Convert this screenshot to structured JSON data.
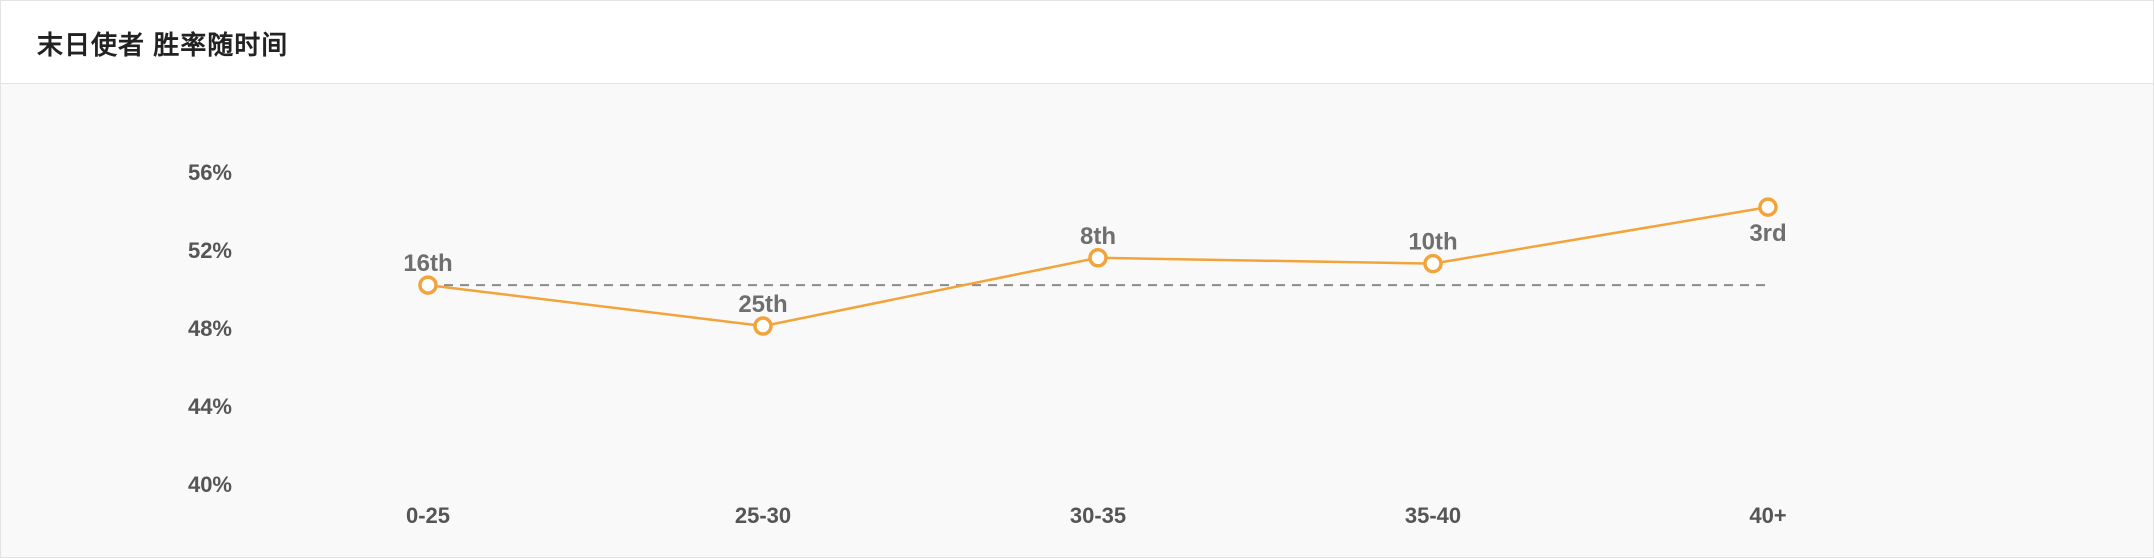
{
  "header": {
    "title": "末日使者 胜率随时间"
  },
  "colors": {
    "line": "#f2a33a",
    "marker_fill": "#ffffff",
    "reference": "#8a8a8a"
  },
  "chart_data": {
    "type": "line",
    "title": "末日使者 胜率随时间",
    "xlabel": "",
    "ylabel": "",
    "categories": [
      "0-25",
      "25-30",
      "30-35",
      "35-40",
      "40+"
    ],
    "values": [
      50.2,
      48.1,
      51.6,
      51.3,
      54.2
    ],
    "point_labels": [
      "16th",
      "25th",
      "8th",
      "10th",
      "3rd"
    ],
    "label_positions": [
      "above",
      "above",
      "above",
      "above",
      "below"
    ],
    "reference_line": 50.2,
    "ylim": [
      40,
      56
    ],
    "yticks": [
      40,
      44,
      48,
      52,
      56
    ],
    "ytick_labels": [
      "40%",
      "44%",
      "48%",
      "52%",
      "56%"
    ],
    "grid": false,
    "legend": "none"
  }
}
